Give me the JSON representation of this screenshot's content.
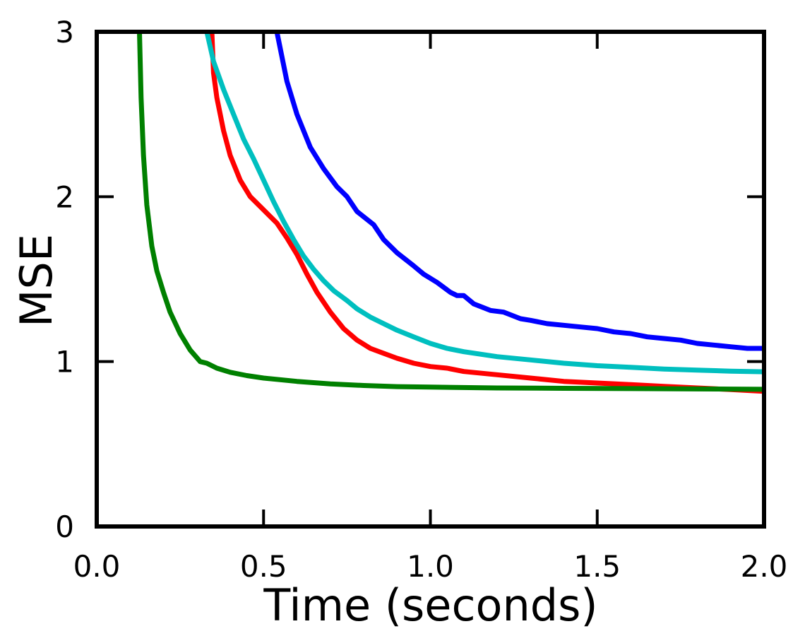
{
  "chart_data": {
    "type": "line",
    "title": "",
    "xlabel": "Time (seconds)",
    "ylabel": "MSE",
    "xlim": [
      0,
      2
    ],
    "ylim": [
      0,
      3
    ],
    "x_ticks": [
      0,
      0.5,
      1,
      1.5,
      2
    ],
    "x_tick_labels": [
      "0.0",
      "0.5",
      "1.0",
      "1.5",
      "2.0"
    ],
    "y_ticks": [
      0,
      1,
      2,
      3
    ],
    "y_tick_labels": [
      "0",
      "1",
      "2",
      "3"
    ],
    "grid": false,
    "series": [
      {
        "color": "#0000ff",
        "points": [
          [
            0.54,
            3.0
          ],
          [
            0.57,
            2.7
          ],
          [
            0.6,
            2.5
          ],
          [
            0.64,
            2.3
          ],
          [
            0.68,
            2.17
          ],
          [
            0.72,
            2.06
          ],
          [
            0.75,
            2.0
          ],
          [
            0.78,
            1.91
          ],
          [
            0.83,
            1.83
          ],
          [
            0.86,
            1.74
          ],
          [
            0.9,
            1.66
          ],
          [
            0.95,
            1.58
          ],
          [
            0.98,
            1.53
          ],
          [
            1.02,
            1.48
          ],
          [
            1.06,
            1.42
          ],
          [
            1.08,
            1.4
          ],
          [
            1.1,
            1.4
          ],
          [
            1.13,
            1.35
          ],
          [
            1.18,
            1.31
          ],
          [
            1.22,
            1.3
          ],
          [
            1.27,
            1.26
          ],
          [
            1.3,
            1.25
          ],
          [
            1.35,
            1.23
          ],
          [
            1.4,
            1.22
          ],
          [
            1.45,
            1.21
          ],
          [
            1.5,
            1.2
          ],
          [
            1.55,
            1.18
          ],
          [
            1.6,
            1.17
          ],
          [
            1.65,
            1.15
          ],
          [
            1.7,
            1.14
          ],
          [
            1.75,
            1.13
          ],
          [
            1.8,
            1.11
          ],
          [
            1.85,
            1.1
          ],
          [
            1.9,
            1.09
          ],
          [
            1.95,
            1.08
          ],
          [
            2.0,
            1.08
          ]
        ]
      },
      {
        "color": "#ff0000",
        "points": [
          [
            0.345,
            3.0
          ],
          [
            0.35,
            2.75
          ],
          [
            0.36,
            2.6
          ],
          [
            0.38,
            2.4
          ],
          [
            0.4,
            2.25
          ],
          [
            0.43,
            2.1
          ],
          [
            0.46,
            2.0
          ],
          [
            0.5,
            1.92
          ],
          [
            0.54,
            1.84
          ],
          [
            0.57,
            1.75
          ],
          [
            0.6,
            1.65
          ],
          [
            0.63,
            1.53
          ],
          [
            0.66,
            1.42
          ],
          [
            0.7,
            1.3
          ],
          [
            0.74,
            1.2
          ],
          [
            0.78,
            1.13
          ],
          [
            0.82,
            1.08
          ],
          [
            0.86,
            1.05
          ],
          [
            0.9,
            1.02
          ],
          [
            0.95,
            0.99
          ],
          [
            1.0,
            0.97
          ],
          [
            1.05,
            0.96
          ],
          [
            1.1,
            0.94
          ],
          [
            1.2,
            0.92
          ],
          [
            1.3,
            0.9
          ],
          [
            1.4,
            0.88
          ],
          [
            1.5,
            0.87
          ],
          [
            1.6,
            0.86
          ],
          [
            1.7,
            0.85
          ],
          [
            1.8,
            0.84
          ],
          [
            1.9,
            0.83
          ],
          [
            2.0,
            0.82
          ]
        ]
      },
      {
        "color": "#00bfbf",
        "points": [
          [
            0.33,
            3.0
          ],
          [
            0.35,
            2.82
          ],
          [
            0.38,
            2.65
          ],
          [
            0.41,
            2.5
          ],
          [
            0.44,
            2.35
          ],
          [
            0.47,
            2.23
          ],
          [
            0.5,
            2.1
          ],
          [
            0.53,
            1.97
          ],
          [
            0.56,
            1.85
          ],
          [
            0.59,
            1.74
          ],
          [
            0.62,
            1.64
          ],
          [
            0.65,
            1.56
          ],
          [
            0.68,
            1.49
          ],
          [
            0.71,
            1.43
          ],
          [
            0.75,
            1.37
          ],
          [
            0.78,
            1.32
          ],
          [
            0.82,
            1.27
          ],
          [
            0.86,
            1.23
          ],
          [
            0.9,
            1.19
          ],
          [
            0.95,
            1.15
          ],
          [
            1.0,
            1.11
          ],
          [
            1.05,
            1.08
          ],
          [
            1.1,
            1.06
          ],
          [
            1.2,
            1.03
          ],
          [
            1.3,
            1.01
          ],
          [
            1.4,
            0.99
          ],
          [
            1.5,
            0.975
          ],
          [
            1.6,
            0.965
          ],
          [
            1.7,
            0.955
          ],
          [
            1.8,
            0.948
          ],
          [
            1.9,
            0.942
          ],
          [
            2.0,
            0.938
          ]
        ]
      },
      {
        "color": "#008000",
        "points": [
          [
            0.128,
            3.0
          ],
          [
            0.133,
            2.6
          ],
          [
            0.14,
            2.25
          ],
          [
            0.15,
            1.95
          ],
          [
            0.165,
            1.7
          ],
          [
            0.18,
            1.55
          ],
          [
            0.2,
            1.42
          ],
          [
            0.22,
            1.3
          ],
          [
            0.25,
            1.17
          ],
          [
            0.28,
            1.07
          ],
          [
            0.31,
            1.0
          ],
          [
            0.33,
            0.99
          ],
          [
            0.36,
            0.96
          ],
          [
            0.4,
            0.935
          ],
          [
            0.45,
            0.915
          ],
          [
            0.5,
            0.9
          ],
          [
            0.6,
            0.88
          ],
          [
            0.7,
            0.865
          ],
          [
            0.8,
            0.855
          ],
          [
            0.9,
            0.848
          ],
          [
            1.0,
            0.845
          ],
          [
            1.2,
            0.84
          ],
          [
            1.4,
            0.838
          ],
          [
            1.6,
            0.836
          ],
          [
            1.8,
            0.834
          ],
          [
            2.0,
            0.832
          ]
        ]
      }
    ]
  }
}
